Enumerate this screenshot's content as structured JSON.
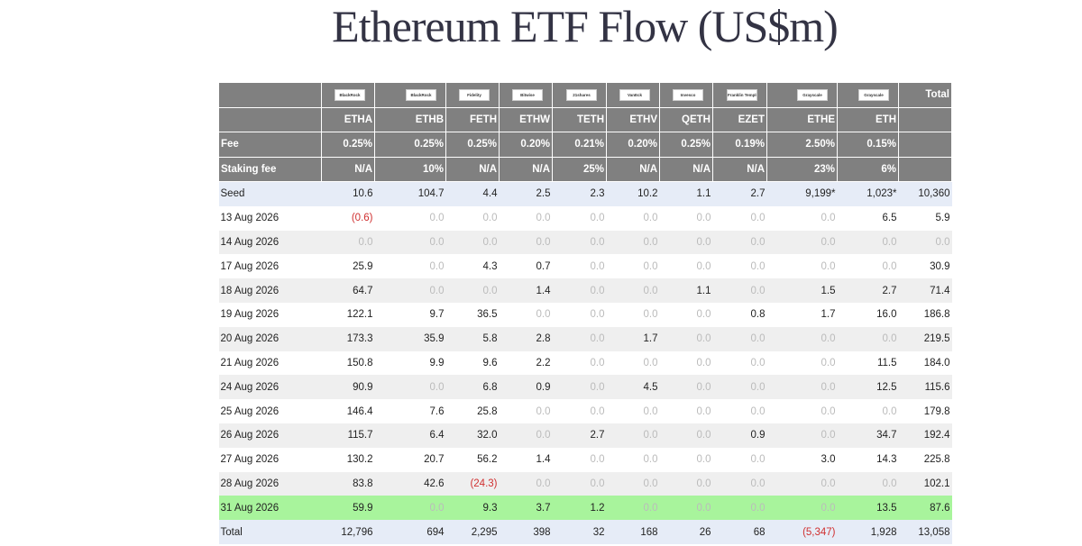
{
  "header": {
    "title": "Ethereum ETF Flow (US$m)"
  },
  "table": {
    "logos": [
      "BlackRock",
      "BlackRock",
      "Fidelity",
      "Bitwise",
      "21shares",
      "VanEck",
      "Invesco",
      "Franklin Templeton",
      "Grayscale",
      "Grayscale"
    ],
    "total_header": "Total",
    "tickers": [
      "ETHA",
      "ETHB",
      "FETH",
      "ETHW",
      "TETH",
      "ETHV",
      "QETH",
      "EZET",
      "ETHE",
      "ETH"
    ],
    "rows": [
      {
        "label": "Fee",
        "cells": [
          "0.25%",
          "0.25%",
          "0.25%",
          "0.20%",
          "0.21%",
          "0.20%",
          "0.25%",
          "0.19%",
          "2.50%",
          "0.15%"
        ]
      },
      {
        "label": "Staking fee",
        "cells": [
          "N/A",
          "10%",
          "N/A",
          "N/A",
          "25%",
          "N/A",
          "N/A",
          "N/A",
          "23%",
          "6%"
        ]
      },
      {
        "label": "Seed",
        "cells": [
          "10.6",
          "104.7",
          "4.4",
          "2.5",
          "2.3",
          "10.2",
          "1.1",
          "2.7",
          "9,199*",
          "1,023*",
          "10,360"
        ]
      },
      {
        "label": "13 Aug 2026",
        "cells": [
          "(0.6)",
          "0.0",
          "0.0",
          "0.0",
          "0.0",
          "0.0",
          "0.0",
          "0.0",
          "0.0",
          "6.5",
          "5.9"
        ]
      },
      {
        "label": "14 Aug 2026",
        "cells": [
          "0.0",
          "0.0",
          "0.0",
          "0.0",
          "0.0",
          "0.0",
          "0.0",
          "0.0",
          "0.0",
          "0.0",
          "0.0"
        ]
      },
      {
        "label": "17 Aug 2026",
        "cells": [
          "25.9",
          "0.0",
          "4.3",
          "0.7",
          "0.0",
          "0.0",
          "0.0",
          "0.0",
          "0.0",
          "0.0",
          "30.9"
        ]
      },
      {
        "label": "18 Aug 2026",
        "cells": [
          "64.7",
          "0.0",
          "0.0",
          "1.4",
          "0.0",
          "0.0",
          "1.1",
          "0.0",
          "1.5",
          "2.7",
          "71.4"
        ]
      },
      {
        "label": "19 Aug 2026",
        "cells": [
          "122.1",
          "9.7",
          "36.5",
          "0.0",
          "0.0",
          "0.0",
          "0.0",
          "0.8",
          "1.7",
          "16.0",
          "186.8"
        ]
      },
      {
        "label": "20 Aug 2026",
        "cells": [
          "173.3",
          "35.9",
          "5.8",
          "2.8",
          "0.0",
          "1.7",
          "0.0",
          "0.0",
          "0.0",
          "0.0",
          "219.5"
        ]
      },
      {
        "label": "21 Aug 2026",
        "cells": [
          "150.8",
          "9.9",
          "9.6",
          "2.2",
          "0.0",
          "0.0",
          "0.0",
          "0.0",
          "0.0",
          "11.5",
          "184.0"
        ]
      },
      {
        "label": "24 Aug 2026",
        "cells": [
          "90.9",
          "0.0",
          "6.8",
          "0.9",
          "0.0",
          "4.5",
          "0.0",
          "0.0",
          "0.0",
          "12.5",
          "115.6"
        ]
      },
      {
        "label": "25 Aug 2026",
        "cells": [
          "146.4",
          "7.6",
          "25.8",
          "0.0",
          "0.0",
          "0.0",
          "0.0",
          "0.0",
          "0.0",
          "0.0",
          "179.8"
        ]
      },
      {
        "label": "26 Aug 2026",
        "cells": [
          "115.7",
          "6.4",
          "32.0",
          "0.0",
          "2.7",
          "0.0",
          "0.0",
          "0.9",
          "0.0",
          "34.7",
          "192.4"
        ]
      },
      {
        "label": "27 Aug 2026",
        "cells": [
          "130.2",
          "20.7",
          "56.2",
          "1.4",
          "0.0",
          "0.0",
          "0.0",
          "0.0",
          "3.0",
          "14.3",
          "225.8"
        ]
      },
      {
        "label": "28 Aug 2026",
        "cells": [
          "83.8",
          "42.6",
          "(24.3)",
          "0.0",
          "0.0",
          "0.0",
          "0.0",
          "0.0",
          "0.0",
          "0.0",
          "102.1"
        ]
      },
      {
        "label": "31 Aug 2026",
        "cells": [
          "59.9",
          "0.0",
          "9.3",
          "3.7",
          "1.2",
          "0.0",
          "0.0",
          "0.0",
          "0.0",
          "13.5",
          "87.6"
        ]
      },
      {
        "label": "Total",
        "cells": [
          "12,796",
          "694",
          "2,295",
          "398",
          "32",
          "168",
          "26",
          "68",
          "(5,347)",
          "1,928",
          "13,058"
        ]
      }
    ]
  }
}
